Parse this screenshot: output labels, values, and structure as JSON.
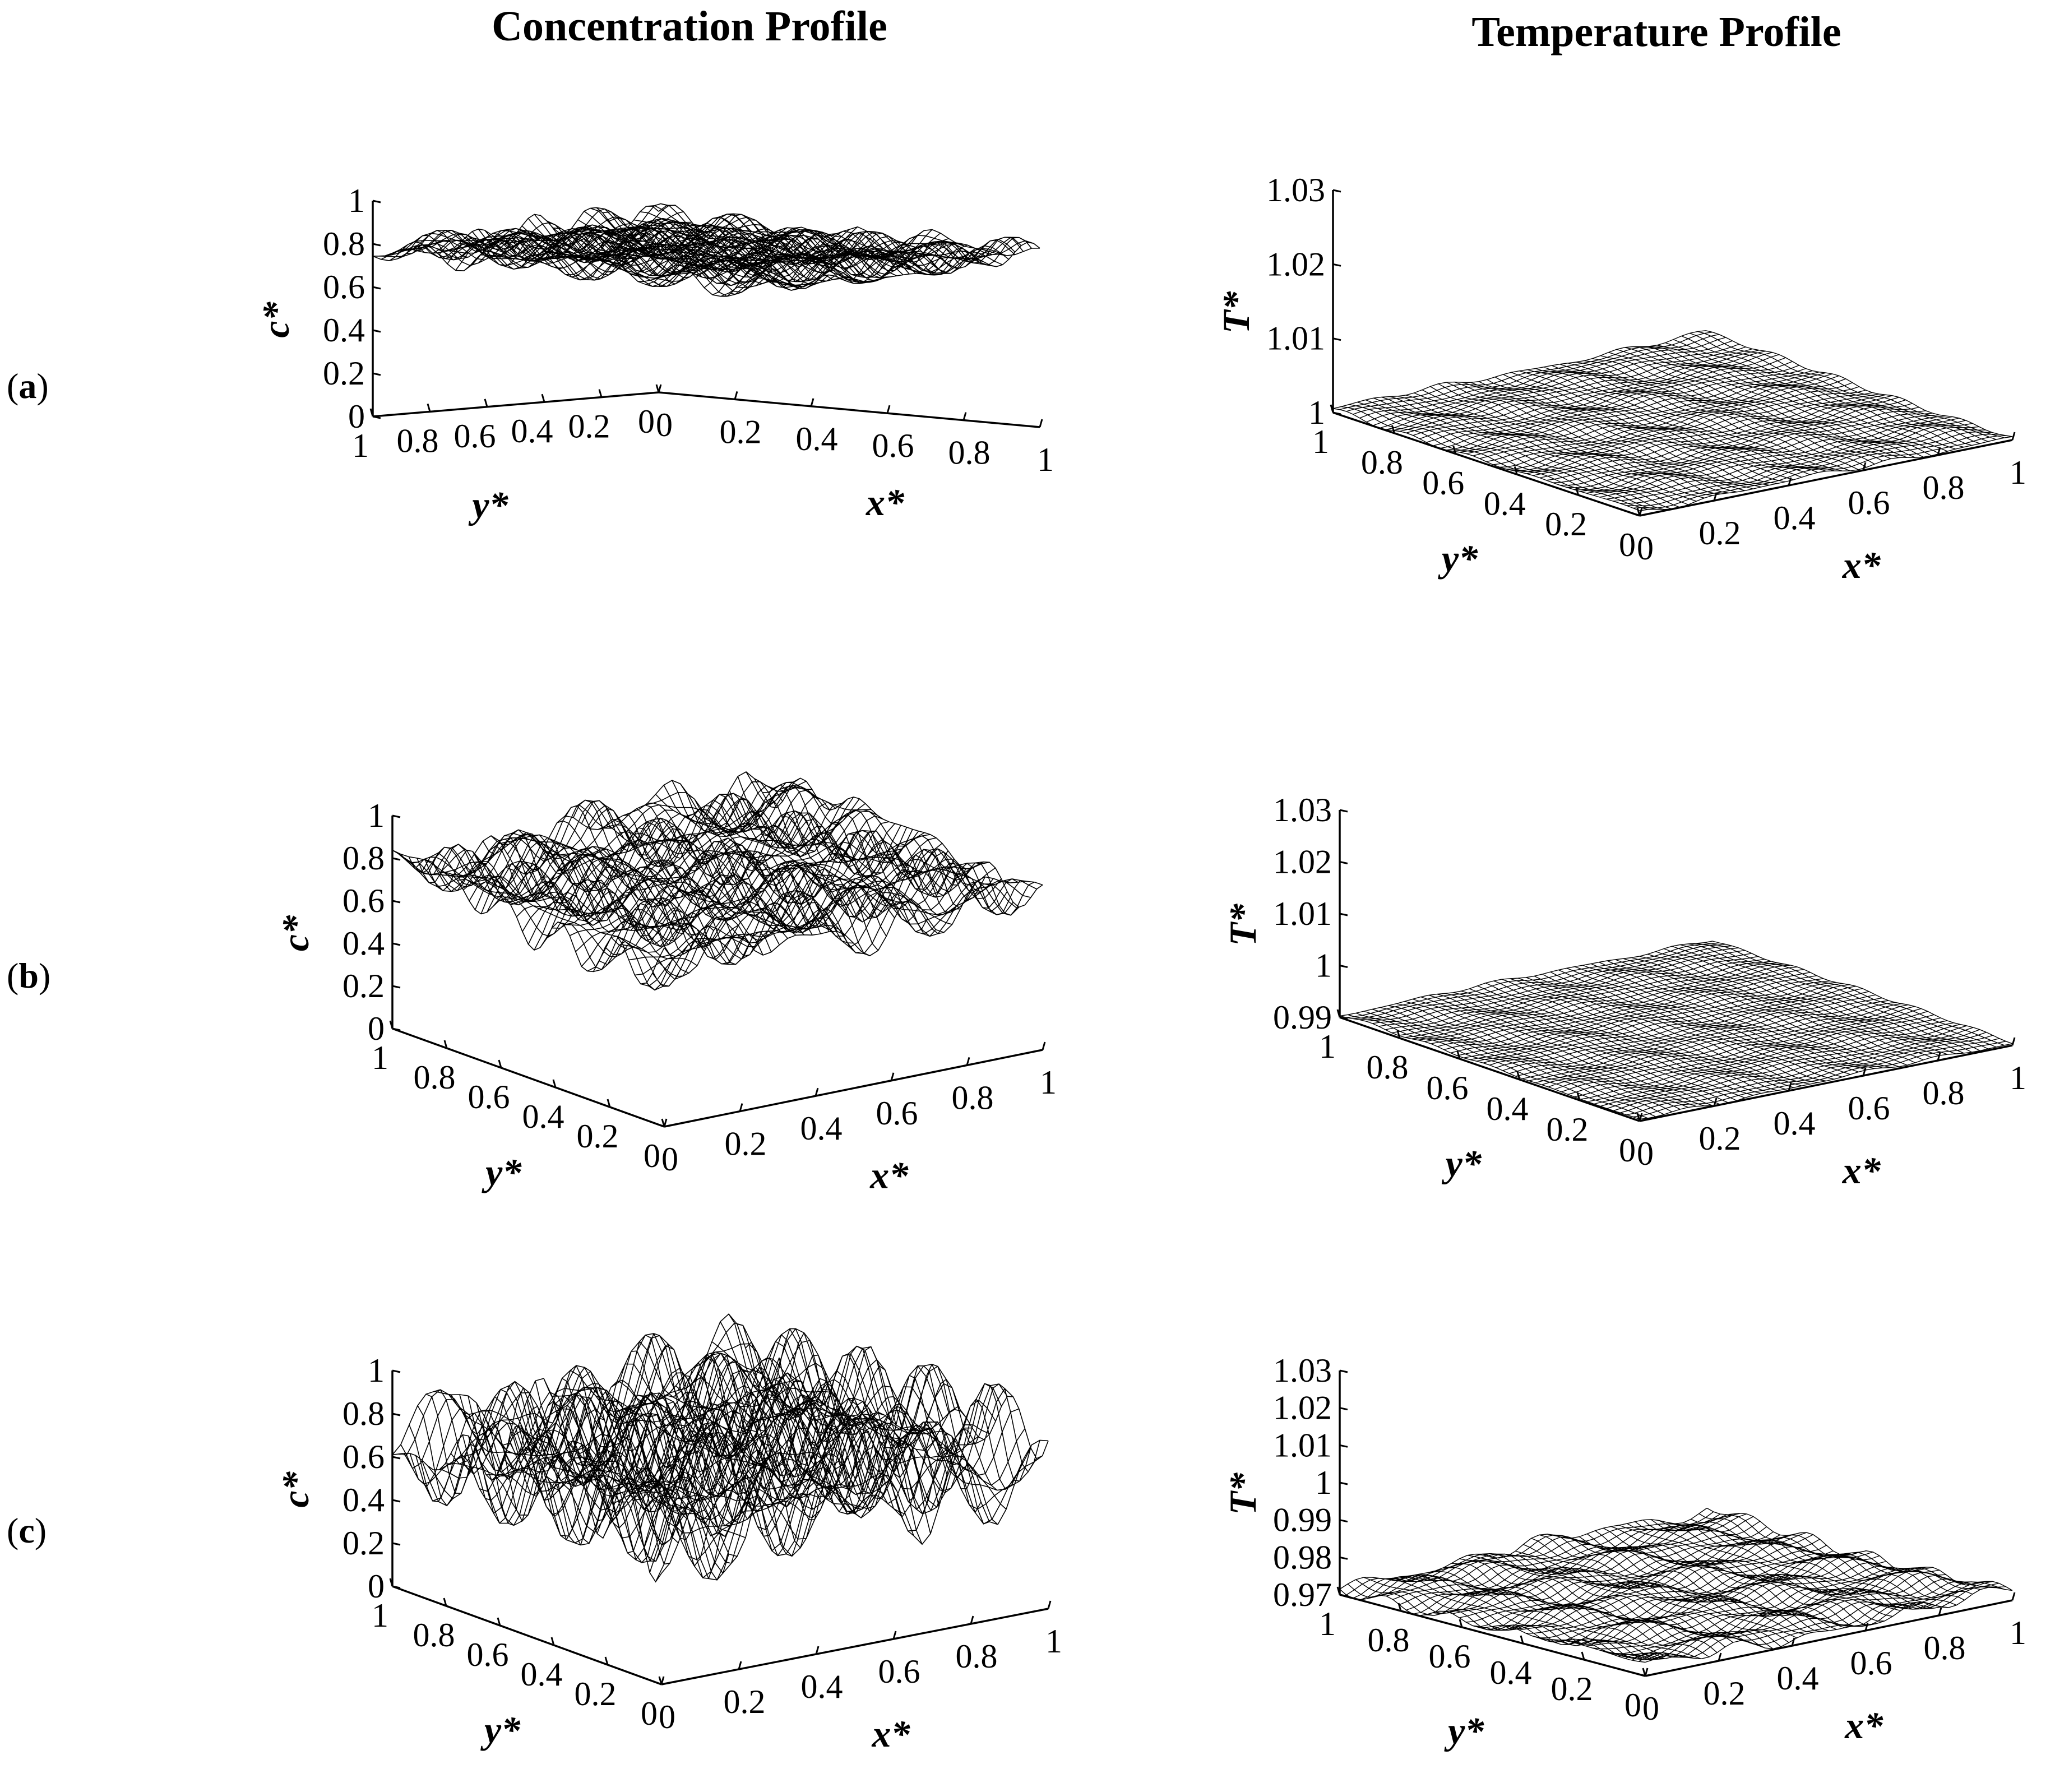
{
  "column_titles": {
    "left": "Concentration Profile",
    "right": "Temperature Profile"
  },
  "rows": [
    {
      "label_open": "(",
      "label_letter": "a",
      "label_close": ")"
    },
    {
      "label_open": "(",
      "label_letter": "b",
      "label_close": ")"
    },
    {
      "label_open": "(",
      "label_letter": "c",
      "label_close": ")"
    }
  ],
  "chart_data": [
    {
      "id": "conc-a",
      "type": "surface",
      "title": "Concentration Profile",
      "panel": "a",
      "xlabel": "x*",
      "ylabel": "y*",
      "zlabel": "c*",
      "xlim": [
        0,
        1
      ],
      "ylim": [
        0,
        1
      ],
      "zlim": [
        0,
        1
      ],
      "x_ticks": [
        "0",
        "0.2",
        "0.4",
        "0.6",
        "0.8",
        "1"
      ],
      "y_ticks": [
        "0",
        "0.2",
        "0.4",
        "0.6",
        "0.8",
        "1"
      ],
      "z_ticks": [
        "0",
        "0.2",
        "0.4",
        "0.6",
        "0.8",
        "1"
      ],
      "surface_mean": 0.8,
      "surface_min": 0.7,
      "surface_max": 0.88
    },
    {
      "id": "temp-a",
      "type": "surface",
      "title": "Temperature Profile",
      "panel": "a",
      "xlabel": "x*",
      "ylabel": "y*",
      "zlabel": "T*",
      "xlim": [
        0,
        1
      ],
      "ylim": [
        0,
        1
      ],
      "zlim": [
        1,
        1.03
      ],
      "x_ticks": [
        "0",
        "0.2",
        "0.4",
        "0.6",
        "0.8",
        "1"
      ],
      "y_ticks": [
        "0",
        "0.2",
        "0.4",
        "0.6",
        "0.8",
        "1"
      ],
      "z_ticks": [
        "1",
        "1.01",
        "1.02",
        "1.03"
      ],
      "surface_mean": 1.0,
      "surface_min": 1.0,
      "surface_max": 1.001
    },
    {
      "id": "conc-b",
      "type": "surface",
      "title": "Concentration Profile",
      "panel": "b",
      "xlabel": "x*",
      "ylabel": "y*",
      "zlabel": "c*",
      "xlim": [
        0,
        1
      ],
      "ylim": [
        0,
        1
      ],
      "zlim": [
        0,
        1
      ],
      "x_ticks": [
        "0",
        "0.2",
        "0.4",
        "0.6",
        "0.8",
        "1"
      ],
      "y_ticks": [
        "0",
        "0.2",
        "0.4",
        "0.6",
        "0.8",
        "1"
      ],
      "z_ticks": [
        "0",
        "0.2",
        "0.4",
        "0.6",
        "0.8",
        "1"
      ],
      "surface_mean": 0.78,
      "surface_min": 0.6,
      "surface_max": 0.92
    },
    {
      "id": "temp-b",
      "type": "surface",
      "title": "Temperature Profile",
      "panel": "b",
      "xlabel": "x*",
      "ylabel": "y*",
      "zlabel": "T*",
      "xlim": [
        0,
        1
      ],
      "ylim": [
        0,
        1
      ],
      "zlim": [
        0.99,
        1.03
      ],
      "x_ticks": [
        "0",
        "0.2",
        "0.4",
        "0.6",
        "0.8",
        "1"
      ],
      "y_ticks": [
        "0",
        "0.2",
        "0.4",
        "0.6",
        "0.8",
        "1"
      ],
      "z_ticks": [
        "0.99",
        "1",
        "1.01",
        "1.02",
        "1.03"
      ],
      "surface_mean": 0.99,
      "surface_min": 0.99,
      "surface_max": 0.991
    },
    {
      "id": "conc-c",
      "type": "surface",
      "title": "Concentration Profile",
      "panel": "c",
      "xlabel": "x*",
      "ylabel": "y*",
      "zlabel": "c*",
      "xlim": [
        0,
        1
      ],
      "ylim": [
        0,
        1
      ],
      "zlim": [
        0,
        1
      ],
      "x_ticks": [
        "0",
        "0.2",
        "0.4",
        "0.6",
        "0.8",
        "1"
      ],
      "y_ticks": [
        "0",
        "0.2",
        "0.4",
        "0.6",
        "0.8",
        "1"
      ],
      "z_ticks": [
        "0",
        "0.2",
        "0.4",
        "0.6",
        "0.8",
        "1"
      ],
      "surface_mean": 0.76,
      "surface_min": 0.4,
      "surface_max": 0.98
    },
    {
      "id": "temp-c",
      "type": "surface",
      "title": "Temperature Profile",
      "panel": "c",
      "xlabel": "x*",
      "ylabel": "y*",
      "zlabel": "T*",
      "xlim": [
        0,
        1
      ],
      "ylim": [
        0,
        1
      ],
      "zlim": [
        0.97,
        1.03
      ],
      "x_ticks": [
        "0",
        "0.2",
        "0.4",
        "0.6",
        "0.8",
        "1"
      ],
      "y_ticks": [
        "0",
        "0.2",
        "0.4",
        "0.6",
        "0.8",
        "1"
      ],
      "z_ticks": [
        "0.97",
        "0.98",
        "0.99",
        "1",
        "1.01",
        "1.02",
        "1.03"
      ],
      "surface_mean": 0.97,
      "surface_min": 0.97,
      "surface_max": 0.975
    }
  ]
}
